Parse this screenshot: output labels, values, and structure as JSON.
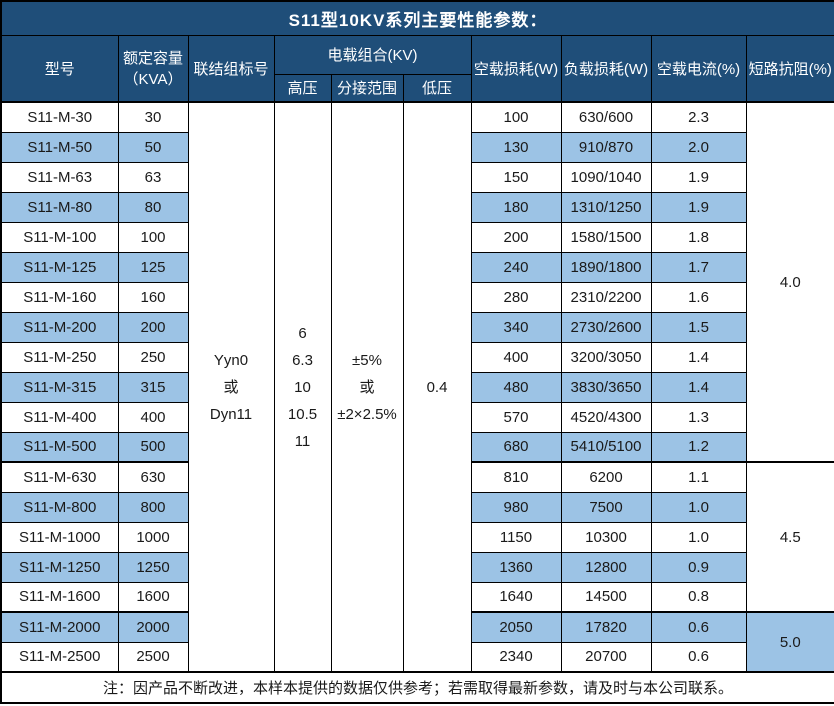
{
  "title": "S11型10KV系列主要性能参数：",
  "colors": {
    "header_bg": "#1F4E79",
    "header_text": "#FFFFFF",
    "row_alt_bg": "#9CC3E5",
    "row_bg": "#FFFFFF",
    "border": "#000000",
    "text": "#1A1A1A"
  },
  "header": {
    "model": "型号",
    "capacity": "额定容量\n（KVA）",
    "vector_group": "联结组标号",
    "voltage_combo": "电载组合(KV)",
    "hv": "高压",
    "tap_range": "分接范围",
    "lv": "低压",
    "no_load_loss": "空载损耗(W)",
    "load_loss": "负载损耗(W)",
    "no_load_current": "空载电流(%)",
    "short_circuit_impedance": "短路抗阻(%)"
  },
  "merged": {
    "vector_group": "Yyn0\n或\nDyn11",
    "hv": "6\n6.3\n10\n10.5\n11",
    "tap_range": "±5%\n或\n±2×2.5%",
    "lv": "0.4"
  },
  "rows": [
    {
      "model": "S11-M-30",
      "capacity": "30",
      "no_load_loss": "100",
      "load_loss": "630/600",
      "no_load_current": "2.3"
    },
    {
      "model": "S11-M-50",
      "capacity": "50",
      "no_load_loss": "130",
      "load_loss": "910/870",
      "no_load_current": "2.0"
    },
    {
      "model": "S11-M-63",
      "capacity": "63",
      "no_load_loss": "150",
      "load_loss": "1090/1040",
      "no_load_current": "1.9"
    },
    {
      "model": "S11-M-80",
      "capacity": "80",
      "no_load_loss": "180",
      "load_loss": "1310/1250",
      "no_load_current": "1.9"
    },
    {
      "model": "S11-M-100",
      "capacity": "100",
      "no_load_loss": "200",
      "load_loss": "1580/1500",
      "no_load_current": "1.8"
    },
    {
      "model": "S11-M-125",
      "capacity": "125",
      "no_load_loss": "240",
      "load_loss": "1890/1800",
      "no_load_current": "1.7"
    },
    {
      "model": "S11-M-160",
      "capacity": "160",
      "no_load_loss": "280",
      "load_loss": "2310/2200",
      "no_load_current": "1.6"
    },
    {
      "model": "S11-M-200",
      "capacity": "200",
      "no_load_loss": "340",
      "load_loss": "2730/2600",
      "no_load_current": "1.5"
    },
    {
      "model": "S11-M-250",
      "capacity": "250",
      "no_load_loss": "400",
      "load_loss": "3200/3050",
      "no_load_current": "1.4"
    },
    {
      "model": "S11-M-315",
      "capacity": "315",
      "no_load_loss": "480",
      "load_loss": "3830/3650",
      "no_load_current": "1.4"
    },
    {
      "model": "S11-M-400",
      "capacity": "400",
      "no_load_loss": "570",
      "load_loss": "4520/4300",
      "no_load_current": "1.3"
    },
    {
      "model": "S11-M-500",
      "capacity": "500",
      "no_load_loss": "680",
      "load_loss": "5410/5100",
      "no_load_current": "1.2"
    },
    {
      "model": "S11-M-630",
      "capacity": "630",
      "no_load_loss": "810",
      "load_loss": "6200",
      "no_load_current": "1.1"
    },
    {
      "model": "S11-M-800",
      "capacity": "800",
      "no_load_loss": "980",
      "load_loss": "7500",
      "no_load_current": "1.0"
    },
    {
      "model": "S11-M-1000",
      "capacity": "1000",
      "no_load_loss": "1150",
      "load_loss": "10300",
      "no_load_current": "1.0"
    },
    {
      "model": "S11-M-1250",
      "capacity": "1250",
      "no_load_loss": "1360",
      "load_loss": "12800",
      "no_load_current": "0.9"
    },
    {
      "model": "S11-M-1600",
      "capacity": "1600",
      "no_load_loss": "1640",
      "load_loss": "14500",
      "no_load_current": "0.8"
    },
    {
      "model": "S11-M-2000",
      "capacity": "2000",
      "no_load_loss": "2050",
      "load_loss": "17820",
      "no_load_current": "0.6"
    },
    {
      "model": "S11-M-2500",
      "capacity": "2500",
      "no_load_loss": "2340",
      "load_loss": "20700",
      "no_load_current": "0.6"
    }
  ],
  "impedance_groups": [
    {
      "value": "4.0",
      "span": 12
    },
    {
      "value": "4.5",
      "span": 5
    },
    {
      "value": "5.0",
      "span": 2
    }
  ],
  "footer_note": "注：因产品不断改进，本样本提供的数据仅供参考；若需取得最新参数，请及时与本公司联系。"
}
